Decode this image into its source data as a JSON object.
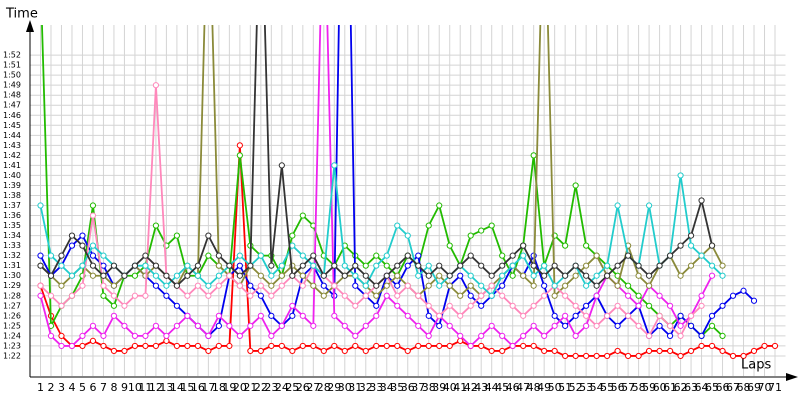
{
  "chart_data": {
    "type": "line",
    "y_label": "Time",
    "x_label": "Laps",
    "grid": true,
    "xlim": [
      0,
      72
    ],
    "ylim": [
      80,
      115
    ],
    "xticks": [
      1,
      2,
      3,
      4,
      5,
      6,
      7,
      8,
      9,
      10,
      11,
      12,
      13,
      14,
      15,
      16,
      17,
      18,
      19,
      20,
      21,
      22,
      23,
      24,
      25,
      26,
      27,
      28,
      29,
      30,
      31,
      32,
      33,
      34,
      35,
      36,
      37,
      38,
      39,
      40,
      41,
      42,
      43,
      44,
      45,
      46,
      47,
      48,
      49,
      50,
      51,
      52,
      53,
      54,
      55,
      56,
      57,
      58,
      59,
      60,
      61,
      62,
      63,
      64,
      65,
      66,
      67,
      68,
      69,
      70,
      71
    ],
    "yticks": [
      {
        "value": 82,
        "label": "1:22"
      },
      {
        "value": 83,
        "label": "1:23"
      },
      {
        "value": 84,
        "label": "1:24"
      },
      {
        "value": 85,
        "label": "1:25"
      },
      {
        "value": 86,
        "label": "1:26"
      },
      {
        "value": 87,
        "label": "1:27"
      },
      {
        "value": 88,
        "label": "1:28"
      },
      {
        "value": 89,
        "label": "1:29"
      },
      {
        "value": 90,
        "label": "1:30"
      },
      {
        "value": 91,
        "label": "1:31"
      },
      {
        "value": 92,
        "label": "1:32"
      },
      {
        "value": 93,
        "label": "1:33"
      },
      {
        "value": 94,
        "label": "1:34"
      },
      {
        "value": 95,
        "label": "1:35"
      },
      {
        "value": 96,
        "label": "1:36"
      },
      {
        "value": 97,
        "label": "1:37"
      },
      {
        "value": 98,
        "label": "1:38"
      },
      {
        "value": 99,
        "label": "1:39"
      },
      {
        "value": 100,
        "label": "1:40"
      },
      {
        "value": 101,
        "label": "1:41"
      },
      {
        "value": 102,
        "label": "1:42"
      },
      {
        "value": 103,
        "label": "1:43"
      },
      {
        "value": 104,
        "label": "1:44"
      },
      {
        "value": 105,
        "label": "1:45"
      },
      {
        "value": 106,
        "label": "1:46"
      },
      {
        "value": 107,
        "label": "1:47"
      },
      {
        "value": 108,
        "label": "1:48"
      },
      {
        "value": 109,
        "label": "1:49"
      },
      {
        "value": 110,
        "label": "1:50"
      },
      {
        "value": 111,
        "label": "1:51"
      },
      {
        "value": 112,
        "label": "1:52"
      }
    ],
    "x": [
      1,
      2,
      3,
      4,
      5,
      6,
      7,
      8,
      9,
      10,
      11,
      12,
      13,
      14,
      15,
      16,
      17,
      18,
      19,
      20,
      21,
      22,
      23,
      24,
      25,
      26,
      27,
      28,
      29,
      30,
      31,
      32,
      33,
      34,
      35,
      36,
      37,
      38,
      39,
      40,
      41,
      42,
      43,
      44,
      45,
      46,
      47,
      48,
      49,
      50,
      51,
      52,
      53,
      54,
      55,
      56,
      57,
      58,
      59,
      60,
      61,
      62,
      63,
      64,
      65,
      66,
      67,
      68,
      69,
      70,
      71
    ],
    "series": [
      {
        "color": "#ff0000",
        "values": [
          89,
          86,
          84,
          83,
          83,
          83.5,
          83,
          82.5,
          82.5,
          83,
          83,
          83,
          83.5,
          83,
          83,
          83,
          82.5,
          83,
          83,
          103,
          82.5,
          82.5,
          83,
          83,
          82.5,
          83,
          83,
          82.5,
          83,
          82.5,
          83,
          82.5,
          83,
          83,
          83,
          82.5,
          83,
          83,
          83,
          83,
          83.5,
          83,
          83,
          82.5,
          82.5,
          83,
          83,
          83,
          82.5,
          82.5,
          82,
          82,
          82,
          82,
          82,
          82.5,
          82,
          82,
          82.5,
          82.5,
          82.5,
          82,
          82.5,
          83,
          83,
          82.5,
          82,
          82,
          82.5,
          83,
          83
        ]
      },
      {
        "color": "#22bb00",
        "values": [
          120,
          85,
          87,
          88,
          90,
          97,
          88,
          87,
          90,
          90,
          91,
          95,
          93,
          94,
          90,
          90,
          92,
          91,
          90,
          102,
          93,
          92,
          92,
          90,
          94,
          96,
          95,
          92,
          91,
          93,
          92,
          91,
          92,
          91,
          90,
          92,
          91,
          95,
          97,
          93,
          91,
          94,
          94.5,
          95,
          92,
          90,
          93,
          102,
          91,
          94,
          93,
          99,
          93,
          92,
          91,
          90,
          89,
          88,
          87,
          86,
          85,
          86,
          85,
          84,
          85,
          84,
          null,
          null,
          null,
          null,
          null
        ]
      },
      {
        "color": "#0000ee",
        "values": [
          92,
          90,
          91,
          93,
          94,
          92,
          91,
          89,
          90,
          91,
          90,
          89,
          88,
          87,
          86,
          85,
          84,
          85,
          90,
          91,
          89,
          88,
          86,
          85,
          86,
          90,
          91,
          89,
          88,
          150,
          89,
          88,
          87,
          90,
          89,
          91,
          92,
          86,
          85,
          89,
          90,
          88,
          87,
          88,
          89,
          91,
          90,
          92,
          89,
          86,
          85,
          86,
          87,
          88,
          86,
          85,
          86,
          87,
          84,
          85,
          84,
          86,
          85,
          84,
          86,
          87,
          88,
          88.5,
          87.5,
          null,
          null
        ]
      },
      {
        "color": "#ee22ee",
        "values": [
          88,
          84,
          83,
          83,
          84,
          85,
          84,
          86,
          85,
          84,
          84,
          85,
          84,
          85,
          86,
          85,
          84,
          86,
          85,
          84,
          85,
          86,
          84,
          85,
          87,
          86,
          85,
          130,
          86,
          85,
          84,
          85,
          86,
          88,
          87,
          86,
          85,
          84,
          86,
          85,
          84,
          83,
          84,
          85,
          84,
          83,
          84,
          85,
          84,
          85,
          86,
          84,
          85,
          88,
          90,
          89,
          88,
          87,
          89,
          88,
          87,
          85,
          86,
          88,
          90,
          null,
          null,
          null,
          null,
          null,
          null
        ]
      },
      {
        "color": "#8a8a3a",
        "values": [
          91,
          90,
          89,
          90,
          91,
          90,
          90,
          89,
          90,
          91,
          90,
          91,
          90,
          89,
          91,
          90,
          130,
          91,
          90,
          89,
          91,
          90,
          89,
          90,
          91,
          90,
          89,
          88,
          89,
          90,
          90,
          89,
          88,
          89,
          90,
          89,
          88,
          89,
          90,
          89,
          88,
          89,
          88,
          89,
          90,
          91,
          90,
          89,
          130,
          88,
          89,
          90,
          91,
          92,
          90,
          89,
          93,
          90,
          89,
          91,
          92,
          90,
          91,
          92,
          93,
          91,
          null,
          null,
          null,
          null,
          null
        ]
      },
      {
        "color": "#ff88bb",
        "values": [
          89,
          88,
          87,
          88,
          89,
          96,
          89,
          88,
          87,
          88,
          88,
          109,
          90,
          89,
          88,
          89,
          88,
          89,
          90,
          89,
          88,
          89,
          88,
          89,
          90,
          89,
          91,
          90,
          89,
          88,
          87,
          88,
          89,
          90,
          88,
          89,
          88,
          87,
          86,
          87,
          86,
          87,
          88,
          89,
          88,
          87,
          86,
          87,
          88,
          89,
          88,
          87,
          86,
          85,
          86,
          87,
          86,
          85,
          84,
          86,
          85,
          84,
          86,
          87,
          null,
          null,
          null,
          null,
          null,
          null,
          null
        ]
      },
      {
        "color": "#22cccc",
        "values": [
          97,
          92,
          91,
          90,
          91,
          93,
          92,
          91,
          90,
          91,
          91,
          90,
          89,
          90,
          91,
          90,
          89,
          90,
          91,
          92,
          91,
          92,
          90,
          91,
          93,
          92,
          91,
          90,
          101,
          91,
          90,
          89,
          91,
          92,
          95,
          94,
          90,
          91,
          89,
          90,
          91,
          90,
          89,
          88,
          90,
          91,
          92,
          90,
          91,
          89,
          90,
          91,
          89,
          90,
          91,
          97,
          92,
          91,
          97,
          91,
          92,
          100,
          93,
          92,
          91,
          90,
          null,
          null,
          null,
          null,
          null
        ]
      },
      {
        "color": "#333333",
        "values": [
          91,
          90,
          92,
          94,
          93,
          91,
          90,
          91,
          90,
          91,
          92,
          91,
          90,
          89,
          90,
          91,
          94,
          92,
          91,
          90,
          91,
          130,
          91,
          101,
          90,
          91,
          92,
          90,
          91,
          90,
          91,
          90,
          89,
          90,
          91,
          92,
          91,
          90,
          91,
          90,
          91,
          92,
          91,
          90,
          91,
          92,
          93,
          91,
          90,
          91,
          90,
          91,
          90,
          89,
          90,
          91,
          92,
          91,
          90,
          91,
          92,
          93,
          94,
          97.5,
          93,
          null,
          null,
          null,
          null,
          null,
          null
        ]
      }
    ]
  }
}
